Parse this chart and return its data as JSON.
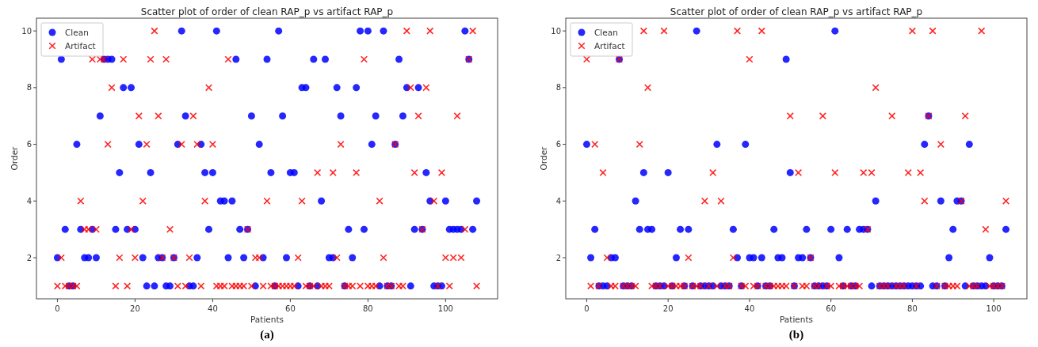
{
  "chart_data": [
    {
      "type": "scatter",
      "title": "Scatter plot of order of clean RAP_p vs artifact RAP_p",
      "xlabel": "Patients",
      "ylabel": "Order",
      "annotations": [
        "(a)"
      ],
      "legend": "top left",
      "x": [
        0,
        1,
        2,
        3,
        4,
        5,
        6,
        7,
        8,
        9,
        10,
        11,
        12,
        13,
        14,
        15,
        16,
        17,
        18,
        19,
        20,
        21,
        22,
        23,
        24,
        25,
        26,
        27,
        28,
        29,
        30,
        31,
        32,
        33,
        34,
        35,
        36,
        37,
        38,
        39,
        40,
        41,
        42,
        43,
        44,
        45,
        46,
        47,
        48,
        49,
        50,
        51,
        52,
        53,
        54,
        55,
        56,
        57,
        58,
        59,
        60,
        61,
        62,
        63,
        64,
        65,
        66,
        67,
        68,
        69,
        70,
        71,
        72,
        73,
        74,
        75,
        76,
        77,
        78,
        79,
        80,
        81,
        82,
        83,
        84,
        85,
        86,
        87,
        88,
        89,
        90,
        91,
        92,
        93,
        94,
        95,
        96,
        97,
        98,
        99,
        100,
        101,
        102,
        103,
        104,
        105,
        106,
        107,
        108
      ],
      "xlim": [
        -5.4,
        113.4
      ],
      "xticks": [
        0,
        20,
        40,
        60,
        80,
        100
      ],
      "ylim": [
        0.55,
        10.45
      ],
      "yticks": [
        2,
        4,
        6,
        8,
        10
      ],
      "series": [
        {
          "name": "Clean",
          "color": "#0000ff",
          "marker": "circle",
          "values": [
            2,
            9,
            3,
            1,
            1,
            6,
            3,
            2,
            2,
            3,
            2,
            7,
            9,
            9,
            9,
            3,
            5,
            8,
            3,
            8,
            3,
            6,
            2,
            1,
            5,
            1,
            2,
            2,
            1,
            1,
            2,
            6,
            10,
            7,
            1,
            1,
            2,
            6,
            5,
            3,
            5,
            10,
            4,
            4,
            2,
            4,
            9,
            3,
            2,
            3,
            7,
            1,
            6,
            2,
            9,
            5,
            1,
            10,
            7,
            2,
            5,
            5,
            1,
            8,
            8,
            1,
            9,
            1,
            4,
            9,
            2,
            2,
            8,
            7,
            1,
            3,
            2,
            8,
            10,
            3,
            10,
            6,
            7,
            1,
            10,
            1,
            1,
            6,
            9,
            7,
            8,
            1,
            3,
            8,
            3,
            5,
            4,
            1,
            1,
            1,
            4,
            3,
            3,
            3,
            3,
            10,
            9,
            3,
            4
          ]
        },
        {
          "name": "Artifact",
          "color": "#ff0000",
          "marker": "cross",
          "values": [
            1,
            2,
            1,
            1,
            1,
            1,
            4,
            3,
            3,
            9,
            3,
            9,
            9,
            6,
            8,
            1,
            2,
            9,
            1,
            3,
            2,
            7,
            4,
            6,
            9,
            10,
            7,
            2,
            9,
            3,
            2,
            1,
            6,
            1,
            2,
            7,
            6,
            1,
            4,
            8,
            6,
            1,
            1,
            1,
            9,
            1,
            1,
            1,
            1,
            3,
            1,
            2,
            2,
            1,
            4,
            1,
            1,
            1,
            1,
            1,
            1,
            1,
            2,
            4,
            1,
            1,
            1,
            5,
            1,
            1,
            1,
            5,
            2,
            6,
            1,
            1,
            1,
            5,
            1,
            9,
            1,
            1,
            1,
            4,
            2,
            1,
            1,
            6,
            1,
            1,
            10,
            8,
            5,
            7,
            3,
            8,
            10,
            4,
            1,
            5,
            2,
            1,
            2,
            7,
            2,
            3,
            9,
            10,
            1
          ]
        }
      ]
    },
    {
      "type": "scatter",
      "title": "Scatter plot of order of clean RAP_p vs artifact RAP_p",
      "xlabel": "Patients",
      "ylabel": "Order",
      "annotations": [
        "(b)"
      ],
      "legend": "top left",
      "x": [
        0,
        1,
        2,
        3,
        4,
        5,
        6,
        7,
        8,
        9,
        10,
        11,
        12,
        13,
        14,
        15,
        16,
        17,
        18,
        19,
        20,
        21,
        22,
        23,
        24,
        25,
        26,
        27,
        28,
        29,
        30,
        31,
        32,
        33,
        34,
        35,
        36,
        37,
        38,
        39,
        40,
        41,
        42,
        43,
        44,
        45,
        46,
        47,
        48,
        49,
        50,
        51,
        52,
        53,
        54,
        55,
        56,
        57,
        58,
        59,
        60,
        61,
        62,
        63,
        64,
        65,
        66,
        67,
        68,
        69,
        70,
        71,
        72,
        73,
        74,
        75,
        76,
        77,
        78,
        79,
        80,
        81,
        82,
        83,
        84,
        85,
        86,
        87,
        88,
        89,
        90,
        91,
        92,
        93,
        94,
        95,
        96,
        97,
        98,
        99,
        100,
        101,
        102,
        103
      ],
      "xlim": [
        -5.15,
        108.15
      ],
      "xticks": [
        0,
        20,
        40,
        60,
        80,
        100
      ],
      "ylim": [
        0.55,
        10.45
      ],
      "yticks": [
        2,
        4,
        6,
        8,
        10
      ],
      "series": [
        {
          "name": "Clean",
          "color": "#0000ff",
          "marker": "circle",
          "values": [
            6,
            2,
            3,
            1,
            1,
            1,
            2,
            2,
            9,
            1,
            1,
            1,
            4,
            3,
            5,
            3,
            3,
            1,
            1,
            1,
            5,
            1,
            2,
            3,
            1,
            3,
            1,
            10,
            1,
            1,
            1,
            1,
            6,
            1,
            1,
            1,
            3,
            2,
            1,
            6,
            2,
            2,
            1,
            2,
            1,
            1,
            3,
            2,
            2,
            9,
            5,
            1,
            2,
            2,
            3,
            2,
            1,
            1,
            1,
            1,
            3,
            10,
            2,
            1,
            3,
            1,
            1,
            3,
            3,
            3,
            1,
            4,
            1,
            1,
            1,
            1,
            1,
            1,
            1,
            1,
            1,
            1,
            1,
            6,
            7,
            1,
            1,
            4,
            1,
            2,
            3,
            4,
            4,
            1,
            6,
            1,
            1,
            1,
            1,
            2,
            1,
            1,
            1,
            3
          ]
        },
        {
          "name": "Artifact",
          "color": "#ff0000",
          "marker": "cross",
          "values": [
            9,
            1,
            6,
            1,
            5,
            2,
            1,
            1,
            9,
            1,
            1,
            1,
            1,
            6,
            10,
            8,
            1,
            1,
            1,
            10,
            1,
            1,
            1,
            1,
            1,
            2,
            1,
            1,
            1,
            4,
            1,
            5,
            1,
            4,
            1,
            1,
            2,
            10,
            1,
            1,
            9,
            1,
            1,
            10,
            1,
            1,
            1,
            1,
            1,
            1,
            7,
            1,
            5,
            1,
            1,
            2,
            1,
            1,
            7,
            1,
            1,
            5,
            1,
            1,
            1,
            1,
            1,
            1,
            5,
            3,
            5,
            8,
            1,
            1,
            1,
            7,
            1,
            1,
            1,
            5,
            10,
            1,
            5,
            4,
            7,
            10,
            1,
            6,
            1,
            1,
            1,
            1,
            4,
            7,
            1,
            1,
            1,
            10,
            3,
            1,
            1,
            1,
            1,
            4
          ]
        }
      ]
    }
  ]
}
